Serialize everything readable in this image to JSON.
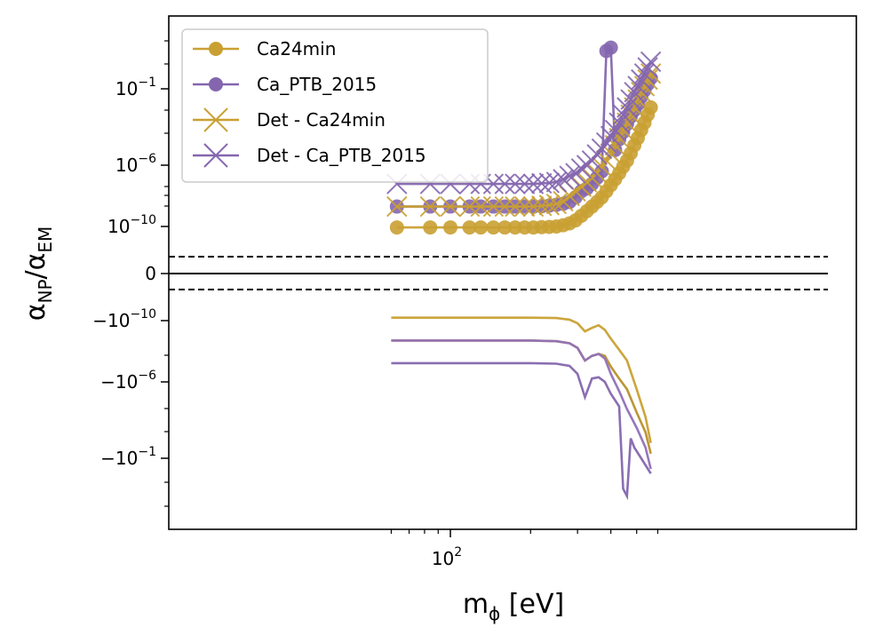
{
  "chart_data": {
    "type": "line",
    "xscale": "log",
    "yscale": "symlog",
    "xlabel_main": "m",
    "xlabel_sub": "ϕ",
    "xlabel_unit": " [eV]",
    "ylabel_a": "α",
    "ylabel_a_sub": "NP",
    "ylabel_sep": "/",
    "ylabel_b": "α",
    "ylabel_b_sub": "EM",
    "xlim": [
      60,
      600
    ],
    "legend_position": "upper-left",
    "grid": false,
    "x_tick_labels": [
      {
        "base": "10",
        "exp": "2",
        "value": 100
      }
    ],
    "y_tick_labels": [
      {
        "base": "10",
        "exp": "−1",
        "sign": "",
        "value": 0.1
      },
      {
        "base": "10",
        "exp": "−6",
        "sign": "",
        "value": 1e-06
      },
      {
        "base": "10",
        "exp": "−10",
        "sign": "",
        "value": 1e-10
      },
      {
        "base": "0",
        "exp": "",
        "sign": "",
        "value": 0
      },
      {
        "base": "10",
        "exp": "−10",
        "sign": "−",
        "value": -1e-10
      },
      {
        "base": "10",
        "exp": "−6",
        "sign": "−",
        "value": -1e-06
      },
      {
        "base": "10",
        "exp": "−1",
        "sign": "−",
        "value": -0.1
      }
    ],
    "threshold_lines": [
      2e-11,
      -2e-11
    ],
    "colors": {
      "gold": "#c9a032",
      "gold_dark": "#b8902c",
      "purple": "#8466ae",
      "purple_light": "#9070b8"
    },
    "series": [
      {
        "name": "Ca24min",
        "style": "line-dot",
        "color": "#c9a032",
        "x": [
          63,
          84,
          100,
          118,
          130,
          145,
          160,
          175,
          190,
          205,
          220,
          235,
          250,
          265,
          280,
          295,
          310,
          325,
          340,
          355,
          370,
          385,
          400,
          415,
          430,
          445,
          460,
          475,
          490,
          505,
          520,
          535,
          550,
          565
        ],
        "y": [
          8e-11,
          8e-11,
          8e-11,
          8e-11,
          8e-11,
          8e-11,
          8e-11,
          8e-11,
          8e-11,
          8e-11,
          8.5e-11,
          9e-11,
          1e-10,
          1.2e-10,
          1.6e-10,
          2.5e-10,
          5e-10,
          1e-09,
          2e-09,
          4e-09,
          8e-09,
          2e-08,
          5e-08,
          1.2e-07,
          3e-07,
          8e-07,
          2e-06,
          6e-06,
          2e-05,
          6e-05,
          0.0002,
          0.0006,
          0.002,
          0.006
        ]
      },
      {
        "name": "Ca_PTB_2015",
        "style": "line-dot",
        "color": "#8466ae",
        "x": [
          63,
          84,
          100,
          118,
          130,
          145,
          160,
          175,
          190,
          205,
          220,
          235,
          250,
          265,
          280,
          295,
          310,
          325,
          340,
          355,
          370,
          385,
          400,
          415,
          430,
          445,
          460,
          475,
          490,
          505,
          520,
          535,
          550,
          565
        ],
        "y": [
          2e-09,
          2e-09,
          2e-09,
          2e-09,
          2e-09,
          2e-09,
          2e-09,
          2e-09,
          2e-09,
          2e-09,
          2.1e-09,
          2.3e-09,
          2.6e-09,
          3e-09,
          4e-09,
          8e-09,
          2e-08,
          3e-08,
          6e-08,
          1.5e-07,
          4e-07,
          30,
          50,
          1e-05,
          5e-05,
          0.00015,
          0.0005,
          0.0015,
          0.004,
          0.01,
          0.03,
          0.08,
          0.2,
          0.5
        ]
      },
      {
        "name": "Det - Ca24min",
        "style": "line-x",
        "color": "#c9a032",
        "x": [
          63,
          84,
          100,
          118,
          130,
          145,
          160,
          175,
          190,
          205,
          220,
          235,
          250,
          265,
          280,
          295,
          310,
          325,
          340,
          355,
          370,
          385,
          400,
          415,
          430,
          445,
          460,
          475,
          490,
          505,
          520,
          535,
          550,
          565
        ],
        "y": [
          2e-09,
          2e-09,
          2e-09,
          2e-09,
          2e-09,
          2e-09,
          2e-09,
          2e-09,
          2e-09,
          2e-09,
          2.2e-09,
          2.5e-09,
          3e-09,
          4.5e-09,
          1e-08,
          2e-08,
          4e-08,
          8e-08,
          1.5e-07,
          3e-07,
          8e-07,
          2e-06,
          6e-06,
          2e-05,
          6e-05,
          0.0002,
          0.0006,
          0.002,
          0.006,
          0.02,
          0.06,
          0.15,
          0.4,
          1
        ]
      },
      {
        "name": "Det - Ca_PTB_2015",
        "style": "line-x",
        "color": "#8466ae",
        "x": [
          63,
          84,
          100,
          118,
          130,
          145,
          160,
          175,
          190,
          205,
          220,
          235,
          250,
          265,
          280,
          295,
          310,
          325,
          340,
          355,
          370,
          385,
          400,
          415,
          430,
          445,
          460,
          475,
          490,
          505,
          520,
          535,
          550,
          565
        ],
        "y": [
          6e-08,
          6e-08,
          6e-08,
          6e-08,
          6e-08,
          6e-08,
          6e-08,
          6e-08,
          6e-08,
          6e-08,
          6.5e-08,
          7e-08,
          8e-08,
          1.2e-07,
          2e-07,
          3e-07,
          6e-07,
          1e-06,
          2e-06,
          5e-06,
          1.2e-05,
          3e-05,
          8e-05,
          0.0002,
          0.0006,
          0.002,
          0.006,
          0.02,
          0.06,
          0.15,
          0.4,
          1,
          2.5,
          6
        ]
      },
      {
        "name": "",
        "style": "line",
        "color": "#c9a032",
        "legend": false,
        "x": [
          60,
          100,
          150,
          200,
          250,
          280,
          300,
          320,
          340,
          360,
          380,
          400,
          430,
          460,
          500,
          540,
          565
        ],
        "y": [
          -5e-11,
          -5e-11,
          -5e-11,
          -5e-11,
          -5.5e-11,
          -8e-11,
          -1.5e-10,
          -5e-10,
          -3e-10,
          -2e-10,
          -4e-10,
          -1.5e-09,
          -8e-09,
          -4e-08,
          -3e-06,
          -0.0002,
          -0.01
        ]
      },
      {
        "name": "",
        "style": "line",
        "color": "#b8902c",
        "legend": false,
        "x": [
          60,
          100,
          150,
          200,
          250,
          280,
          300,
          320,
          340,
          360,
          380,
          400,
          430,
          460,
          500,
          540,
          565
        ],
        "y": [
          -2e-09,
          -2e-09,
          -2e-09,
          -2e-09,
          -2.2e-09,
          -3e-09,
          -6e-09,
          -4e-08,
          -2e-08,
          -1.5e-08,
          -2e-08,
          -1e-07,
          -6e-07,
          -3e-06,
          -0.0001,
          -0.002,
          -0.05
        ]
      },
      {
        "name": "",
        "style": "line",
        "color": "#8466ae",
        "legend": false,
        "x": [
          60,
          100,
          150,
          200,
          250,
          280,
          300,
          320,
          340,
          360,
          380,
          400,
          430,
          445,
          460,
          475,
          490,
          520,
          565
        ],
        "y": [
          -6e-08,
          -6e-08,
          -6e-08,
          -6e-08,
          -6.5e-08,
          -9e-08,
          -3e-07,
          -1e-05,
          -6e-07,
          -5e-07,
          -1e-06,
          -6e-06,
          -4e-05,
          -10,
          -30,
          -0.005,
          -0.02,
          -0.1,
          -1
        ]
      },
      {
        "name": "",
        "style": "line",
        "color": "#9070b8",
        "legend": false,
        "x": [
          60,
          100,
          150,
          200,
          250,
          280,
          300,
          320,
          340,
          360,
          380,
          400,
          430,
          460,
          500,
          540,
          565
        ],
        "y": [
          -2e-09,
          -2e-09,
          -2e-09,
          -2e-09,
          -2.2e-09,
          -3e-09,
          -6e-09,
          -4e-08,
          -2e-08,
          -1.5e-08,
          -3e-08,
          -3e-07,
          -4e-06,
          -6e-05,
          -0.001,
          -0.02,
          -0.5
        ]
      }
    ]
  }
}
